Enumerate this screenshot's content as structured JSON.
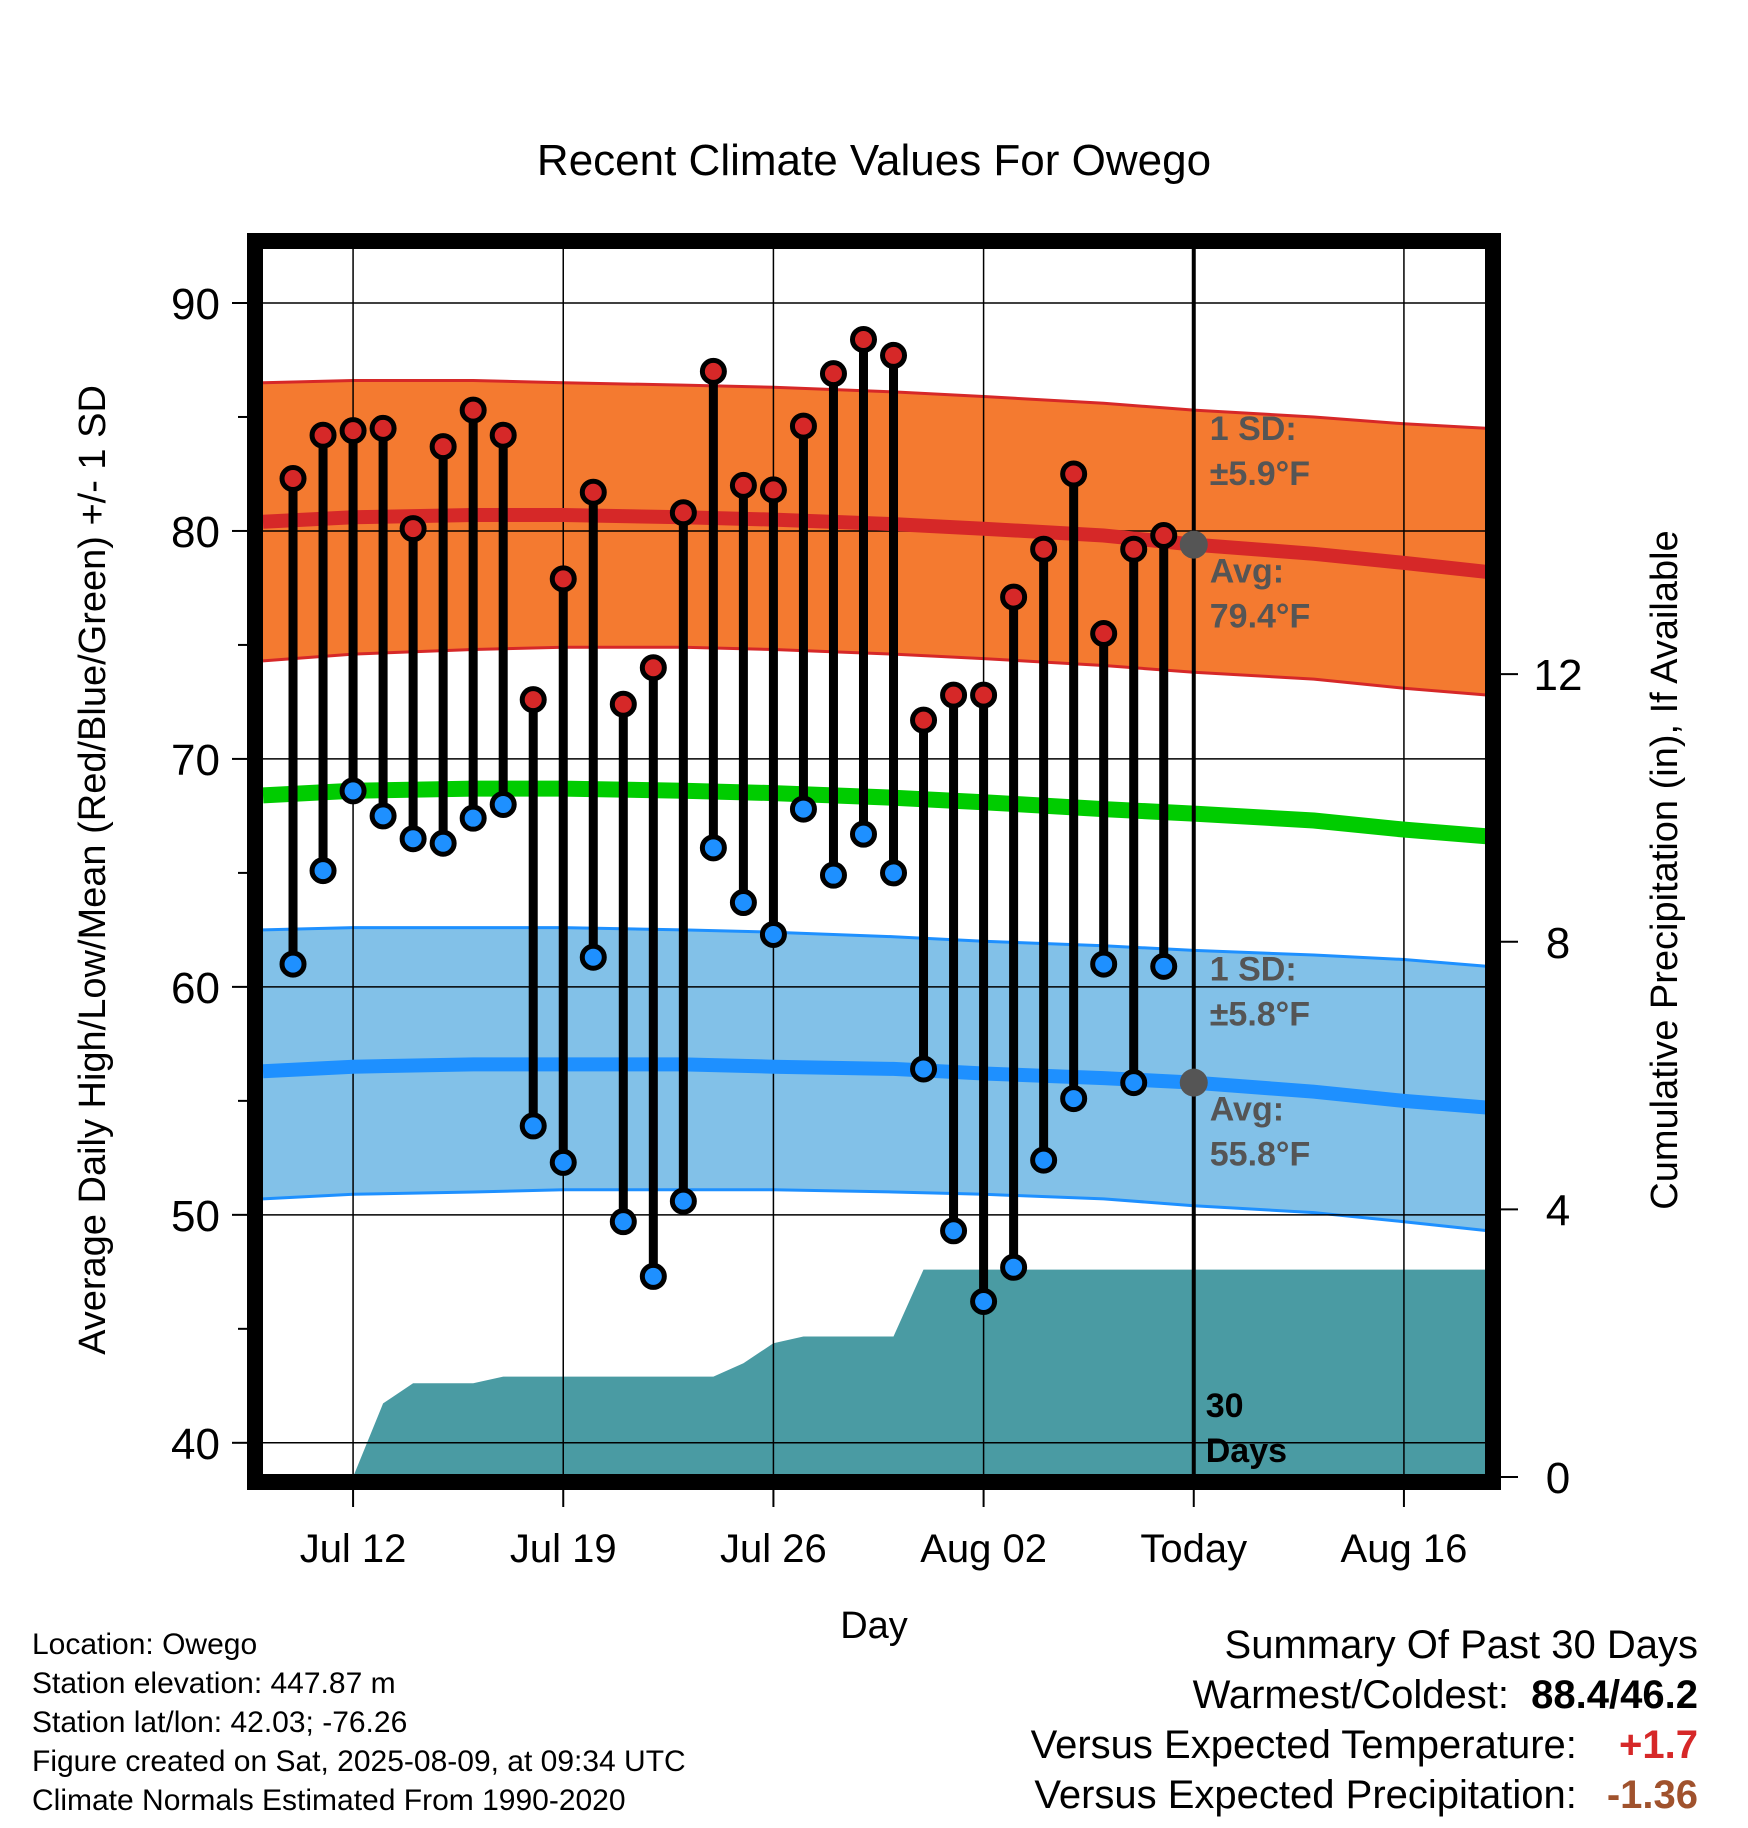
{
  "chart_data": {
    "type": "line",
    "title": "Recent Climate Values For Owego",
    "xlabel": "Day",
    "ylabel": "Average Daily High/Low/Mean (Red/Blue/Green) +/- 1 SD",
    "y2label": "Cumulative Precipitation (in), If Available",
    "x_range_days": [
      -31.1,
      9.8
    ],
    "ylim": [
      38.5,
      92.5
    ],
    "y2lim": [
      0,
      18.4
    ],
    "yticks": [
      40,
      50,
      60,
      70,
      80,
      90
    ],
    "y2ticks": [
      0,
      4,
      8,
      12
    ],
    "grid": true,
    "x_ticks": [
      {
        "day": -28,
        "label": "Jul 12"
      },
      {
        "day": -21,
        "label": "Jul 19"
      },
      {
        "day": -14,
        "label": "Jul 26"
      },
      {
        "day": -7,
        "label": "Aug 02"
      },
      {
        "day": 0,
        "label": "Today"
      },
      {
        "day": 7,
        "label": "Aug 16"
      }
    ],
    "normals_days": [
      -31,
      -28,
      -24,
      -21,
      -17,
      -14,
      -10,
      -7,
      -3,
      0,
      4,
      7,
      9.8
    ],
    "normal_high": [
      80.4,
      80.6,
      80.7,
      80.7,
      80.6,
      80.5,
      80.3,
      80.1,
      79.8,
      79.4,
      79.0,
      78.6,
      78.2
    ],
    "high_sd_upper": [
      86.5,
      86.6,
      86.6,
      86.5,
      86.4,
      86.3,
      86.1,
      85.9,
      85.6,
      85.3,
      85.0,
      84.7,
      84.5
    ],
    "high_sd_lower": [
      74.3,
      74.6,
      74.8,
      74.9,
      74.9,
      74.8,
      74.6,
      74.4,
      74.1,
      73.8,
      73.5,
      73.1,
      72.8
    ],
    "normal_mean": [
      68.4,
      68.6,
      68.7,
      68.7,
      68.6,
      68.5,
      68.3,
      68.1,
      67.8,
      67.6,
      67.3,
      66.9,
      66.6
    ],
    "normal_low": [
      56.3,
      56.5,
      56.6,
      56.6,
      56.6,
      56.5,
      56.4,
      56.2,
      56.0,
      55.8,
      55.4,
      55.0,
      54.7
    ],
    "low_sd_upper": [
      62.5,
      62.6,
      62.6,
      62.6,
      62.5,
      62.4,
      62.2,
      62.0,
      61.8,
      61.6,
      61.4,
      61.2,
      60.9
    ],
    "low_sd_lower": [
      50.7,
      50.9,
      51.0,
      51.1,
      51.1,
      51.1,
      51.0,
      50.9,
      50.7,
      50.4,
      50.1,
      49.7,
      49.3
    ],
    "series": [
      {
        "name": "Daily High",
        "color": "#d62828",
        "days": [
          -30,
          -29,
          -28,
          -27,
          -26,
          -25,
          -24,
          -23,
          -22,
          -21,
          -20,
          -19,
          -18,
          -17,
          -16,
          -15,
          -14,
          -13,
          -12,
          -11,
          -10,
          -9,
          -8,
          -7,
          -6,
          -5,
          -4,
          -3,
          -2,
          -1
        ],
        "values": [
          82.3,
          84.2,
          84.4,
          84.5,
          80.1,
          83.7,
          85.3,
          84.2,
          72.6,
          77.9,
          81.7,
          72.4,
          74.0,
          80.8,
          87.0,
          82.0,
          81.8,
          84.6,
          86.9,
          88.4,
          87.7,
          71.7,
          72.8,
          72.8,
          77.1,
          79.2,
          82.5,
          75.5,
          79.2,
          79.8
        ]
      },
      {
        "name": "Daily Low",
        "color": "#1e90ff",
        "days": [
          -30,
          -29,
          -28,
          -27,
          -26,
          -25,
          -24,
          -23,
          -22,
          -21,
          -20,
          -19,
          -18,
          -17,
          -16,
          -15,
          -14,
          -13,
          -12,
          -11,
          -10,
          -9,
          -8,
          -7,
          -6,
          -5,
          -4,
          -3,
          -2,
          -1
        ],
        "values": [
          61.0,
          65.1,
          68.6,
          67.5,
          66.5,
          66.3,
          67.4,
          68.0,
          53.9,
          52.3,
          61.3,
          49.7,
          47.3,
          50.6,
          66.1,
          63.7,
          62.3,
          67.8,
          64.9,
          66.7,
          65.0,
          56.4,
          49.3,
          46.2,
          47.7,
          52.4,
          55.1,
          61.0,
          55.8,
          60.9
        ]
      }
    ],
    "precip": {
      "days": [
        -28,
        -27,
        -26,
        -25,
        -24,
        -23,
        -22,
        -21,
        -20,
        -19,
        -18,
        -17,
        -16,
        -15,
        -14,
        -13,
        -12,
        -11,
        -10,
        -9,
        -8,
        -7,
        -6,
        -5,
        -4,
        -3,
        -2,
        -1,
        0,
        9.8
      ],
      "values": [
        0,
        1.1,
        1.4,
        1.4,
        1.4,
        1.5,
        1.5,
        1.5,
        1.5,
        1.5,
        1.5,
        1.5,
        1.5,
        1.7,
        2.0,
        2.1,
        2.1,
        2.1,
        2.1,
        3.1,
        3.1,
        3.1,
        3.1,
        3.1,
        3.1,
        3.1,
        3.1,
        3.1,
        3.1,
        3.1
      ],
      "color": "#4a9ba3"
    },
    "annotations": {
      "high_sd_l1": "1 SD:",
      "high_sd_l2": "±5.9°F",
      "high_avg_l1": "Avg:",
      "high_avg_l2": "79.4°F",
      "low_sd_l1": "1 SD:",
      "low_sd_l2": "±5.8°F",
      "low_avg_l1": "Avg:",
      "low_avg_l2": "55.8°F",
      "days_l1": "30",
      "days_l2": "Days",
      "today_high_avg": 79.4,
      "today_low_avg": 55.8
    },
    "colors": {
      "high_band": "#f47a30",
      "high_line": "#d62828",
      "low_band": "#82c1e8",
      "low_line": "#1e90ff",
      "mean_line": "#00cc00",
      "annotation": "#555555"
    }
  },
  "info": {
    "location": "Location: Owego",
    "elevation": "Station elevation: 447.87 m",
    "latlon": "Station lat/lon: 42.03; -76.26",
    "created": "Figure created on Sat, 2025-08-09, at 09:34 UTC",
    "normals": "Climate Normals Estimated From 1990-2020"
  },
  "summary": {
    "title": "Summary Of Past 30 Days",
    "warm_cold_label": "Warmest/Coldest:",
    "warm_cold_value": "88.4/46.2",
    "temp_label": "Versus Expected Temperature:",
    "temp_value": "+1.7",
    "temp_color": "#d62828",
    "precip_label": "Versus Expected Precipitation:",
    "precip_value": "-1.36",
    "precip_color": "#a0522d"
  }
}
